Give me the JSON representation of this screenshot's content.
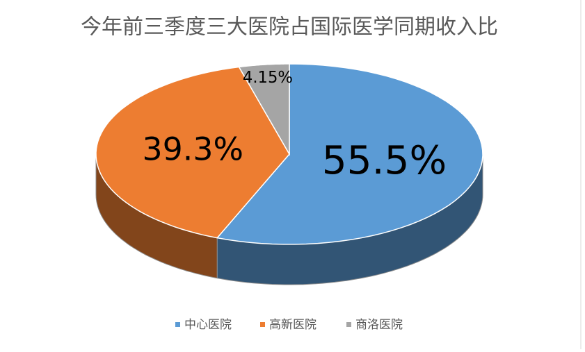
{
  "chart_data": {
    "type": "pie3d",
    "title": "今年前三季度三大医院占国际医学同期收入比",
    "categories": [
      "中心医院",
      "高新医院",
      "商洛医院"
    ],
    "values": [
      55.5,
      39.3,
      4.15
    ],
    "value_labels": [
      "55.5%",
      "39.3%",
      "4.15%"
    ],
    "colors": [
      "#5b9bd5",
      "#ed7d31",
      "#a5a5a5"
    ],
    "legend": "bottom"
  }
}
